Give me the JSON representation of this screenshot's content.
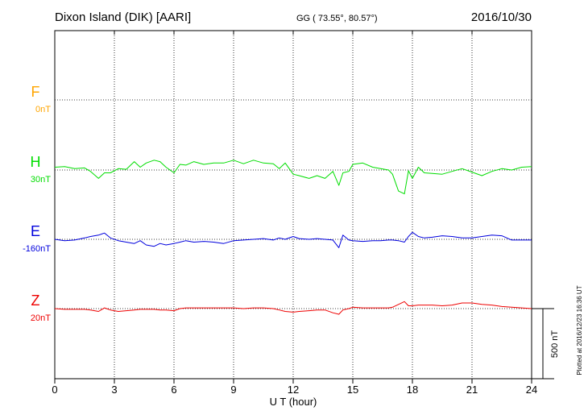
{
  "header": {
    "station": "Dixon Island (DIK)  [AARI]",
    "coords": "GG ( 73.55°,  80.57°)",
    "date": "2016/10/30"
  },
  "plotted_note": "Plotted at 2016/12/23 16:36 UT",
  "scale_bar_label": "500 nT",
  "chart_data": {
    "type": "line",
    "xlabel": "U T (hour)",
    "x_ticks": [
      "0",
      "3",
      "6",
      "9",
      "12",
      "15",
      "18",
      "21",
      "24"
    ],
    "xlim": [
      0,
      24
    ],
    "grid": true,
    "scale_nT": 500,
    "channels": [
      {
        "name": "F",
        "baseline": "0nT",
        "color": "#ffa500"
      },
      {
        "name": "H",
        "baseline": "30nT",
        "color": "#00dd00"
      },
      {
        "name": "E",
        "baseline": "-160nT",
        "color": "#0000dd"
      },
      {
        "name": "Z",
        "baseline": "20nT",
        "color": "#ee0000"
      }
    ],
    "series": [
      {
        "name": "H",
        "x": [
          0,
          0.5,
          1,
          1.5,
          1.8,
          2.2,
          2.5,
          2.8,
          3.2,
          3.6,
          4,
          4.3,
          4.6,
          5,
          5.3,
          5.6,
          6,
          6.3,
          6.6,
          7,
          7.5,
          8,
          8.5,
          9,
          9.5,
          10,
          10.5,
          11,
          11.3,
          11.6,
          12,
          12.3,
          12.8,
          13.2,
          13.6,
          14,
          14.3,
          14.5,
          14.8,
          15,
          15.5,
          16,
          16.4,
          16.8,
          17.0,
          17.3,
          17.6,
          17.8,
          18,
          18.3,
          18.6,
          19,
          19.5,
          20,
          20.5,
          21,
          21.5,
          22,
          22.5,
          23,
          23.5,
          24
        ],
        "y": [
          20,
          25,
          10,
          15,
          -10,
          -60,
          -20,
          -20,
          10,
          5,
          60,
          20,
          50,
          70,
          60,
          20,
          -20,
          40,
          35,
          60,
          40,
          50,
          50,
          70,
          45,
          70,
          50,
          45,
          10,
          50,
          -30,
          -40,
          -60,
          -40,
          -60,
          -10,
          -110,
          -20,
          -10,
          40,
          50,
          20,
          10,
          0,
          -30,
          -150,
          -170,
          -5,
          -60,
          20,
          -20,
          -25,
          -30,
          -10,
          10,
          -15,
          -40,
          -10,
          10,
          0,
          20,
          25
        ]
      },
      {
        "name": "E",
        "x": [
          0,
          0.5,
          1,
          1.5,
          1.8,
          2.2,
          2.5,
          2.8,
          3.2,
          3.6,
          4,
          4.3,
          4.6,
          5,
          5.3,
          5.6,
          6,
          6.3,
          6.6,
          7,
          7.5,
          8,
          8.5,
          9,
          9.5,
          10,
          10.5,
          11,
          11.3,
          11.6,
          12,
          12.3,
          12.8,
          13.2,
          13.6,
          14,
          14.3,
          14.5,
          14.8,
          15,
          15.5,
          16,
          16.4,
          16.8,
          17.0,
          17.3,
          17.6,
          17.8,
          18,
          18.3,
          18.6,
          19,
          19.5,
          20,
          20.5,
          21,
          21.5,
          22,
          22.5,
          23,
          23.5,
          24
        ],
        "y": [
          0,
          -10,
          -5,
          10,
          20,
          30,
          45,
          10,
          -10,
          -20,
          -30,
          -10,
          -40,
          -50,
          -30,
          -40,
          -30,
          -20,
          -10,
          -20,
          -15,
          -20,
          -30,
          -10,
          -5,
          0,
          5,
          -5,
          10,
          0,
          20,
          5,
          0,
          5,
          0,
          -5,
          -60,
          30,
          -5,
          -10,
          -15,
          -10,
          -10,
          -5,
          -5,
          -10,
          -20,
          20,
          50,
          20,
          10,
          15,
          25,
          20,
          10,
          10,
          20,
          30,
          25,
          -5,
          -5,
          -5
        ]
      },
      {
        "name": "Z",
        "x": [
          0,
          0.5,
          1,
          1.5,
          1.8,
          2.2,
          2.5,
          2.8,
          3.2,
          3.6,
          4,
          4.3,
          4.6,
          5,
          5.3,
          5.6,
          6,
          6.3,
          6.6,
          7,
          7.5,
          8,
          8.5,
          9,
          9.5,
          10,
          10.5,
          11,
          11.3,
          11.6,
          12,
          12.3,
          12.8,
          13.2,
          13.6,
          14,
          14.3,
          14.5,
          14.8,
          15,
          15.5,
          16,
          16.4,
          16.8,
          17.0,
          17.3,
          17.6,
          17.8,
          18,
          18.3,
          18.6,
          19,
          19.5,
          20,
          20.5,
          21,
          21.5,
          22,
          22.5,
          23,
          23.5,
          24
        ],
        "y": [
          0,
          -5,
          -5,
          -5,
          -10,
          -20,
          5,
          -10,
          -20,
          -15,
          -10,
          -5,
          -5,
          -5,
          -10,
          -10,
          -15,
          0,
          5,
          5,
          5,
          5,
          5,
          5,
          0,
          5,
          5,
          0,
          -10,
          -20,
          -25,
          -20,
          -15,
          -10,
          -10,
          -30,
          -40,
          -10,
          0,
          10,
          5,
          5,
          5,
          5,
          10,
          30,
          50,
          20,
          20,
          25,
          25,
          25,
          20,
          25,
          40,
          40,
          30,
          25,
          15,
          10,
          5,
          0
        ]
      }
    ]
  }
}
